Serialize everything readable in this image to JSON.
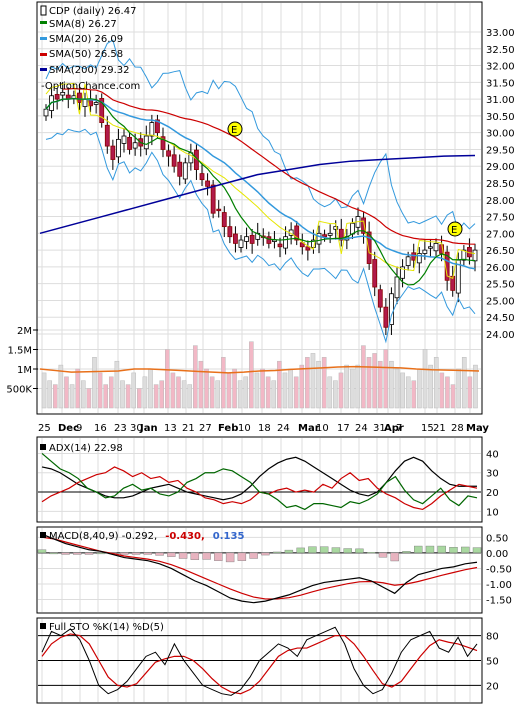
{
  "chart_data": [
    {
      "type": "candlestick",
      "panel": "price",
      "legend": [
        {
          "label": "CDP (daily) 26.47",
          "color": "#000000"
        },
        {
          "label": "SMA(8) 26.27",
          "color": "#008000"
        },
        {
          "label": "SMA(20) 26.09",
          "color": "#3399dd"
        },
        {
          "label": "SMA(50) 26.58",
          "color": "#cc0000"
        },
        {
          "label": "SMA(200) 29.32",
          "color": "#000099"
        },
        {
          "label": "-OptionChance.com",
          "color": "#000000"
        }
      ],
      "earnings_marker": "E",
      "ylim": [
        24.0,
        33.0
      ],
      "y_ticks": [
        "33.00",
        "32.50",
        "32.00",
        "31.50",
        "31.00",
        "30.50",
        "30.00",
        "29.50",
        "29.00",
        "28.50",
        "28.00",
        "27.50",
        "27.00",
        "26.50",
        "26.00",
        "25.50",
        "25.00",
        "24.50",
        "24.00"
      ],
      "x_ticks": [
        "25",
        "Dec",
        "9",
        "16",
        "23",
        "30",
        "Jan",
        "13",
        "21",
        "27",
        "Feb",
        "10",
        "18",
        "24",
        "Mar",
        "10",
        "17",
        "24",
        "31",
        "Apr",
        "7",
        "15",
        "21",
        "28",
        "May"
      ],
      "close": [
        30.7,
        31.1,
        31.0,
        31.2,
        31.0,
        31.1,
        30.9,
        31.0,
        30.8,
        30.9,
        30.3,
        29.6,
        29.2,
        29.8,
        29.9,
        29.5,
        29.7,
        29.6,
        29.9,
        30.3,
        30.0,
        29.5,
        29.3,
        29.0,
        28.7,
        29.1,
        29.4,
        28.9,
        28.6,
        28.4,
        27.6,
        27.7,
        27.2,
        26.9,
        26.7,
        26.8,
        26.9,
        26.7,
        27.0,
        26.9,
        26.7,
        26.8,
        26.6,
        26.9,
        27.1,
        26.8,
        26.6,
        26.5,
        26.8,
        27.0,
        26.9,
        27.0,
        27.2,
        26.8,
        26.9,
        27.3,
        27.5,
        27.0,
        26.1,
        25.4,
        24.8,
        24.2,
        25.2,
        25.7,
        26.0,
        26.3,
        26.2,
        26.4,
        26.5,
        26.6,
        26.7,
        26.4,
        25.6,
        25.3,
        26.2,
        26.5,
        26.3,
        26.5
      ],
      "sma200": [
        27.0,
        27.25,
        27.5,
        27.75,
        28.0,
        28.25,
        28.5,
        28.75,
        28.9,
        29.05,
        29.15,
        29.2,
        29.25,
        29.3,
        29.32
      ]
    },
    {
      "type": "bar",
      "panel": "volume",
      "y_ticks": [
        "2M",
        "1.5M",
        "1M",
        "500K"
      ],
      "ylim": [
        0,
        2300000
      ],
      "values": [
        900000,
        700000,
        600000,
        1100000,
        800000,
        600000,
        1000000,
        700000,
        500000,
        1300000,
        900000,
        600000,
        800000,
        1200000,
        700000,
        600000,
        900000,
        500000,
        800000,
        1000000,
        600000,
        700000,
        1500000,
        900000,
        800000,
        700000,
        600000,
        1600000,
        1200000,
        1000000,
        800000,
        700000,
        1300000,
        900000,
        1000000,
        700000,
        800000,
        1700000,
        900000,
        1000000,
        800000,
        700000,
        1200000,
        900000,
        1000000,
        800000,
        1100000,
        1300000,
        1400000,
        1200000,
        1300000,
        800000,
        700000,
        900000,
        1100000,
        1000000,
        1100000,
        1600000,
        1300000,
        1400000,
        1200000,
        1500000,
        1200000,
        1000000,
        900000,
        800000,
        700000,
        1000000,
        1500000,
        1100000,
        1300000,
        900000,
        800000,
        600000,
        1000000,
        1300000,
        800000,
        1100000
      ],
      "ma": [
        1000000,
        960000,
        920000,
        930000,
        940000,
        950000,
        1000000,
        1000000,
        980000,
        960000,
        940000,
        920000,
        900000,
        920000,
        950000,
        960000,
        990000,
        1010000,
        1030000,
        1050000,
        1060000,
        1050000,
        1040000,
        1030000,
        1000000,
        980000,
        970000,
        960000,
        950000
      ]
    },
    {
      "type": "line",
      "panel": "adx",
      "legend": "ADX(14) 22.98",
      "y_ticks": [
        "40",
        "30",
        "20",
        "10"
      ],
      "ylim": [
        5,
        48
      ],
      "series": [
        {
          "color": "#000000",
          "values": [
            33,
            32,
            30,
            27,
            24,
            22,
            20,
            18,
            17,
            17,
            18,
            20,
            22,
            23,
            24,
            22,
            20,
            19,
            18,
            17,
            16,
            17,
            19,
            23,
            28,
            32,
            35,
            37,
            38,
            36,
            33,
            30,
            27,
            24,
            21,
            19,
            18,
            20,
            25,
            31,
            36,
            38,
            36,
            31,
            27,
            24,
            23,
            23,
            23
          ]
        },
        {
          "color": "#cc0000",
          "values": [
            15,
            18,
            20,
            22,
            25,
            27,
            29,
            30,
            33,
            31,
            28,
            30,
            27,
            28,
            25,
            26,
            22,
            20,
            17,
            16,
            14,
            15,
            14,
            16,
            20,
            19,
            21,
            22,
            20,
            21,
            20,
            24,
            22,
            27,
            30,
            26,
            27,
            22,
            19,
            17,
            14,
            12,
            11,
            14,
            18,
            21,
            24,
            23,
            22
          ]
        },
        {
          "color": "#006600",
          "values": [
            40,
            36,
            32,
            30,
            27,
            22,
            20,
            17,
            18,
            22,
            24,
            21,
            22,
            19,
            18,
            20,
            25,
            27,
            30,
            30,
            32,
            31,
            28,
            25,
            20,
            19,
            16,
            12,
            13,
            11,
            14,
            14,
            13,
            12,
            15,
            14,
            16,
            19,
            25,
            28,
            21,
            16,
            14,
            18,
            22,
            16,
            13,
            18,
            17
          ]
        }
      ]
    },
    {
      "type": "bar",
      "panel": "macd",
      "legend_prefix": "MACD(8,40,9) -0.292,",
      "legend_macd": "-0.430,",
      "legend_signal": "0.135",
      "y_ticks": [
        "0.50",
        "0.00",
        "-0.50",
        "-1.00",
        "-1.50"
      ],
      "ylim": [
        -1.9,
        0.8
      ],
      "macd": [
        0.6,
        0.45,
        0.3,
        0.2,
        0.1,
        0.05,
        -0.05,
        -0.15,
        -0.2,
        -0.25,
        -0.35,
        -0.5,
        -0.7,
        -0.9,
        -1.05,
        -1.25,
        -1.45,
        -1.55,
        -1.6,
        -1.55,
        -1.45,
        -1.35,
        -1.2,
        -1.05,
        -0.95,
        -0.9,
        -0.85,
        -0.8,
        -0.9,
        -1.1,
        -1.3,
        -0.95,
        -0.7,
        -0.6,
        -0.5,
        -0.45,
        -0.35,
        -0.3
      ],
      "signal": [
        0.5,
        0.45,
        0.35,
        0.25,
        0.15,
        0.05,
        -0.02,
        -0.1,
        -0.15,
        -0.2,
        -0.27,
        -0.38,
        -0.52,
        -0.68,
        -0.84,
        -1.0,
        -1.16,
        -1.3,
        -1.42,
        -1.48,
        -1.48,
        -1.44,
        -1.36,
        -1.25,
        -1.15,
        -1.07,
        -0.99,
        -0.93,
        -0.92,
        -0.96,
        -1.04,
        -1.0,
        -0.92,
        -0.82,
        -0.72,
        -0.63,
        -0.54,
        -0.47
      ],
      "histogram": [
        0.1,
        0.0,
        -0.05,
        -0.05,
        -0.05,
        0.0,
        -0.03,
        -0.05,
        -0.05,
        -0.05,
        -0.08,
        -0.12,
        -0.18,
        -0.22,
        -0.21,
        -0.25,
        -0.29,
        -0.25,
        -0.18,
        -0.07,
        0.03,
        0.09,
        0.16,
        0.2,
        0.2,
        0.17,
        0.14,
        0.13,
        0.02,
        -0.14,
        -0.26,
        0.05,
        0.22,
        0.22,
        0.22,
        0.18,
        0.19,
        0.17
      ]
    },
    {
      "type": "line",
      "panel": "stoch",
      "legend": "Full STO %K(14) %D(5)",
      "y_ticks": [
        "80",
        "50",
        "20"
      ],
      "ylim": [
        0,
        100
      ],
      "k": [
        60,
        85,
        80,
        88,
        75,
        50,
        20,
        10,
        15,
        25,
        40,
        55,
        60,
        45,
        70,
        50,
        35,
        20,
        15,
        10,
        8,
        15,
        30,
        50,
        60,
        70,
        65,
        55,
        75,
        80,
        85,
        90,
        70,
        40,
        20,
        10,
        15,
        35,
        60,
        75,
        80,
        85,
        65,
        60,
        78,
        55,
        70
      ],
      "d": [
        55,
        70,
        78,
        82,
        80,
        70,
        50,
        30,
        20,
        18,
        22,
        35,
        48,
        52,
        55,
        55,
        50,
        40,
        28,
        18,
        12,
        10,
        15,
        25,
        40,
        55,
        62,
        65,
        65,
        70,
        75,
        80,
        80,
        70,
        55,
        38,
        22,
        18,
        25,
        40,
        55,
        68,
        75,
        72,
        70,
        66,
        62
      ]
    }
  ]
}
